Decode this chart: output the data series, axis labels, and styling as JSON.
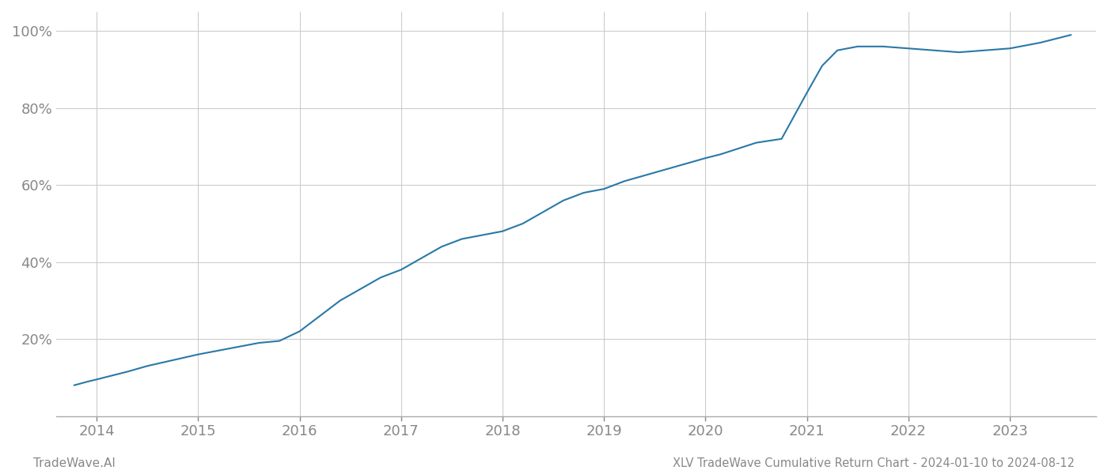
{
  "title": "XLV TradeWave Cumulative Return Chart - 2024-01-10 to 2024-08-12",
  "footer_left": "TradeWave.AI",
  "line_color": "#2979a8",
  "background_color": "#ffffff",
  "grid_color": "#cccccc",
  "x_years": [
    2014,
    2015,
    2016,
    2017,
    2018,
    2019,
    2020,
    2021,
    2022,
    2023
  ],
  "x_data": [
    2013.78,
    2013.85,
    2013.92,
    2014.0,
    2014.15,
    2014.3,
    2014.5,
    2014.75,
    2015.0,
    2015.2,
    2015.4,
    2015.6,
    2015.8,
    2016.0,
    2016.2,
    2016.4,
    2016.6,
    2016.8,
    2017.0,
    2017.2,
    2017.4,
    2017.6,
    2017.8,
    2018.0,
    2018.2,
    2018.4,
    2018.6,
    2018.8,
    2019.0,
    2019.2,
    2019.4,
    2019.6,
    2019.8,
    2020.0,
    2020.15,
    2020.5,
    2020.75,
    2021.0,
    2021.15,
    2021.3,
    2021.5,
    2021.75,
    2022.0,
    2022.25,
    2022.5,
    2022.75,
    2023.0,
    2023.3,
    2023.6
  ],
  "y_data": [
    8,
    8.5,
    9,
    9.5,
    10.5,
    11.5,
    13,
    14.5,
    16,
    17,
    18,
    19,
    19.5,
    22,
    26,
    30,
    33,
    36,
    38,
    41,
    44,
    46,
    47,
    48,
    50,
    53,
    56,
    58,
    59,
    61,
    62.5,
    64,
    65.5,
    67,
    68,
    71,
    72,
    84,
    91,
    95,
    96,
    96,
    95.5,
    95,
    94.5,
    95,
    95.5,
    97,
    99
  ],
  "ylim": [
    0,
    105
  ],
  "yticks": [
    20,
    40,
    60,
    80,
    100
  ],
  "xlim": [
    2013.6,
    2023.85
  ],
  "line_width": 1.5,
  "title_fontsize": 10.5,
  "tick_fontsize": 13,
  "footer_fontsize": 11,
  "tick_color": "#888888",
  "spine_color": "#aaaaaa"
}
